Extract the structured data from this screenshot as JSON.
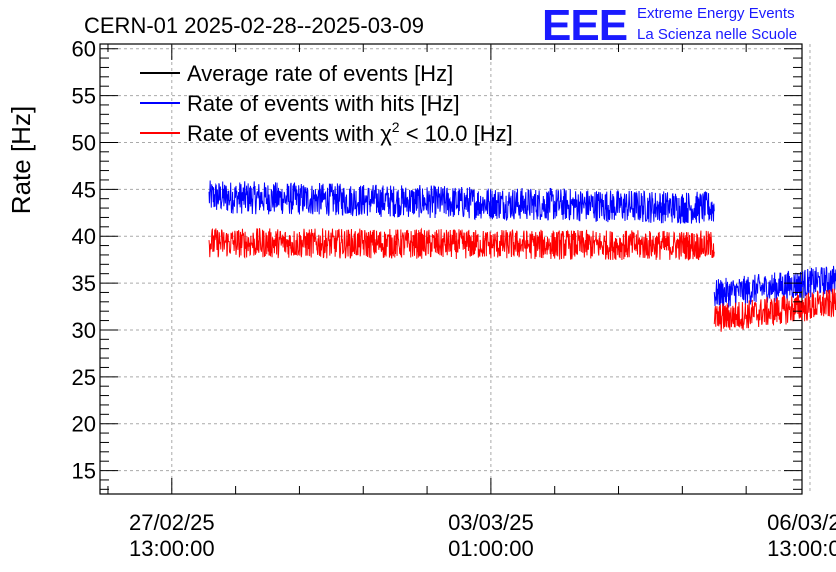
{
  "chart_data": {
    "type": "line",
    "title": "CERN-01 2025-02-28--2025-03-09",
    "ylabel": "Rate [Hz]",
    "xlabel": "",
    "ylim": [
      12.5,
      60.5
    ],
    "yticks": [
      15,
      20,
      25,
      30,
      35,
      40,
      45,
      50,
      55,
      60
    ],
    "xlim_hours": [
      -13.5,
      118.5
    ],
    "xticks": [
      {
        "hours": 0,
        "date": "27/02/25",
        "time": "13:00:00"
      },
      {
        "hours": 60,
        "date": "03/03/25",
        "time": "01:00:00"
      },
      {
        "hours": 120,
        "date": "06/03/25",
        "time": "13:00:00"
      }
    ],
    "grid": true,
    "legend_position": "top-left",
    "legend": [
      {
        "name": "Average rate of events [Hz]",
        "color": "#000000"
      },
      {
        "name": "Rate of events with hits [Hz]",
        "color": "#0000ff"
      },
      {
        "name": "Rate of events with χ² < 10.0 [Hz]",
        "color": "#ff0000",
        "label_prefix": "Rate of events with ",
        "chi_symbol": "χ",
        "chi_exp": "2",
        "label_suffix": " < 10.0 [Hz]"
      }
    ],
    "series": [
      {
        "name": "Rate of events with hits [Hz]",
        "color": "#0000ff",
        "segments": [
          {
            "start_hours": 7,
            "end_hours": 102,
            "mean": 44.2,
            "mean_end": 43.0,
            "noise": 1.1
          },
          {
            "start_hours": 102,
            "end_hours": 134,
            "mean": 33.8,
            "mean_end": 36.0,
            "noise": 1.0
          }
        ]
      },
      {
        "name": "Rate of events with χ² < 10.0 [Hz]",
        "color": "#ff0000",
        "segments": [
          {
            "start_hours": 7,
            "end_hours": 102,
            "mean": 39.3,
            "mean_end": 39.0,
            "noise": 1.0
          },
          {
            "start_hours": 102,
            "end_hours": 134,
            "mean": 31.2,
            "mean_end": 33.5,
            "noise": 1.0
          }
        ]
      }
    ]
  },
  "logo": {
    "mark": "EEE",
    "line1": "Extreme Energy Events",
    "line2": "La Scienza nelle Scuole",
    "color": "#1a1aff"
  }
}
